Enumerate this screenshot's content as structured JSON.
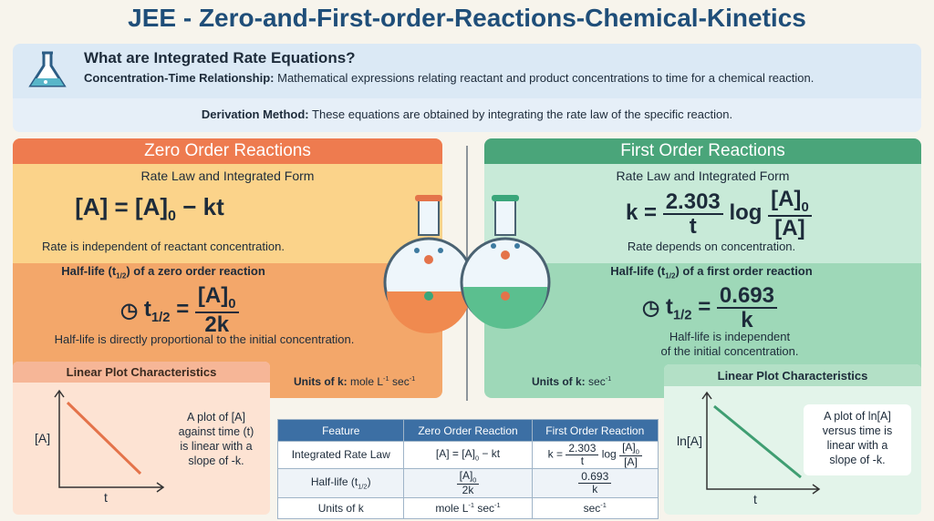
{
  "header": {
    "title": "JEE - Zero-and-First-order-Reactions-Chemical-Kinetics"
  },
  "intro": {
    "heading": "What are Integrated Rate Equations?",
    "relationship": {
      "label": "Concentration-Time Relationship:",
      "text": "Mathematical expressions relating reactant and product concentrations to time for a chemical reaction."
    },
    "derivation": {
      "label": "Derivation Method:",
      "text": "These equations are obtained by integrating the rate law of the specific reaction."
    }
  },
  "zero_order": {
    "title": "Zero Order Reactions",
    "rate_heading": "Rate Law and Integrated Form",
    "equation": {
      "lhs": "[A] = [A]",
      "sub": "0",
      "rhs": "− kt"
    },
    "rate_note": "Rate is independent of reactant concentration.",
    "half_life_heading": {
      "pre": "Half-life (t",
      "sub": "1/2",
      "post": ") of a zero order reaction"
    },
    "half_life_formula": {
      "t": "t",
      "sub": "1/2",
      "eq": "=",
      "num": "[A]",
      "num_sub": "0",
      "den": "2k"
    },
    "half_life_note": "Half-life is directly proportional to the initial concentration.",
    "units": {
      "label": "Units of k:",
      "text": "mole L",
      "exp1": "-1",
      "text2": "sec",
      "exp2": "-1"
    },
    "plot": {
      "title": "Linear Plot Characteristics",
      "y_label": "[A]",
      "x_label": "t",
      "description": [
        "A plot of [A]",
        "against time (t)",
        "is linear with a",
        "slope of -k."
      ]
    }
  },
  "first_order": {
    "title": "First Order Reactions",
    "rate_heading": "Rate Law and Integrated Form",
    "equation": {
      "lhs": "k =",
      "num1": "2.303",
      "den1": "t",
      "log": "log",
      "num2": "[A]",
      "num2_sub": "0",
      "den2": "[A]"
    },
    "rate_note": "Rate depends on concentration.",
    "half_life_heading": {
      "pre": "Half-life (t",
      "sub": "1/2",
      "post": ") of a first order reaction"
    },
    "half_life_formula": {
      "t": "t",
      "sub": "1/2",
      "eq": "=",
      "num": "0.693",
      "den": "k"
    },
    "half_life_note": [
      "Half-life is independent",
      "of the initial concentration."
    ],
    "units": {
      "label": "Units of k:",
      "text": "sec",
      "exp": "-1"
    },
    "plot": {
      "title": "Linear Plot Characteristics",
      "y_label": "ln[A]",
      "x_label": "t",
      "description": [
        "A plot of ln[A]",
        "versus time is",
        "linear with a",
        "slope of -k."
      ]
    }
  },
  "table": {
    "header": [
      "Feature",
      "Zero Order Reaction",
      "First Order Reaction"
    ],
    "rows": [
      {
        "label": "Integrated Rate Law",
        "zero": {
          "lhs": "[A] = [A]",
          "sub": "0",
          "rhs": "− kt"
        },
        "first": {
          "lhs": "k =",
          "num1": "2.303",
          "den1": "t",
          "log": "log",
          "num2": "[A]",
          "num2_sub": "0",
          "den2": "[A]"
        }
      },
      {
        "label": {
          "pre": "Half-life (t",
          "sub": "1/2",
          "post": ")"
        },
        "zero": {
          "num": "[A]",
          "num_sub": "0",
          "den": "2k"
        },
        "first": {
          "num": "0.693",
          "den": "k"
        }
      },
      {
        "label": "Units of k",
        "zero": {
          "text": "mole L",
          "exp1": "-1",
          "text2": "sec",
          "exp2": "-1"
        },
        "first": {
          "text": "sec",
          "exp": "-1"
        }
      }
    ]
  }
}
